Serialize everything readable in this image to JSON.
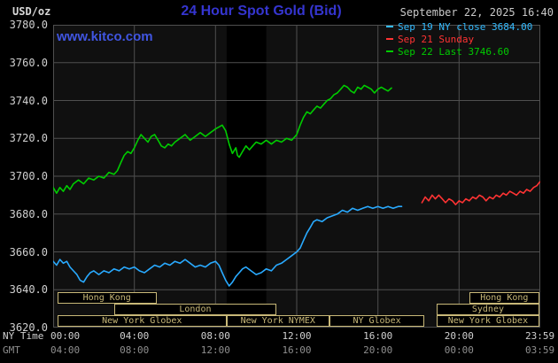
{
  "header": {
    "unit_label": "USD/oz",
    "title": "24 Hour Spot Gold (Bid)",
    "datetime": "September 22, 2025 16:40",
    "watermark": "www.kitco.com"
  },
  "legend": [
    {
      "label": "Sep 19 NY close 3684.00",
      "color": "#33bbff"
    },
    {
      "label": "Sep 21 Sunday",
      "color": "#ff3333"
    },
    {
      "label": "Sep 22 Last 3746.60",
      "color": "#00cc00"
    }
  ],
  "axes": {
    "ny_label": "NY Time",
    "gmt_label": "GMT"
  },
  "colors": {
    "background": "#000000",
    "plot_background": "#101010",
    "grid": "#4f4f4f",
    "title_blue": "#3535d0",
    "link_blue": "#4055e0",
    "axis_text": "#d0d0d0",
    "gmt_text": "#8f8f8f",
    "session": "#c8b878",
    "series_green": "#00cc00",
    "series_blue": "#29aaff",
    "series_red": "#ff3333"
  },
  "chart_data": {
    "type": "line",
    "title": "24 Hour Spot Gold (Bid)",
    "ylabel": "USD/oz",
    "xlabel": "NY Time (hours)",
    "xlim": [
      0,
      24
    ],
    "ylim": [
      3620,
      3780
    ],
    "grid": true,
    "y_ticks": [
      {
        "v": 3780,
        "label": "3780.0"
      },
      {
        "v": 3760,
        "label": "3760.0"
      },
      {
        "v": 3740,
        "label": "3740.0"
      },
      {
        "v": 3720,
        "label": "3720.0"
      },
      {
        "v": 3700,
        "label": "3700.0"
      },
      {
        "v": 3680,
        "label": "3680.0"
      },
      {
        "v": 3660,
        "label": "3660.0"
      },
      {
        "v": 3640,
        "label": "3640.0"
      },
      {
        "v": 3620,
        "label": "3620.0"
      }
    ],
    "x_ticks": [
      {
        "h": 0,
        "ny": "00:00",
        "gmt": "04:00",
        "align": "start"
      },
      {
        "h": 4,
        "ny": "04:00",
        "gmt": "08:00",
        "align": "center"
      },
      {
        "h": 8,
        "ny": "08:00",
        "gmt": "12:00",
        "align": "center"
      },
      {
        "h": 12,
        "ny": "12:00",
        "gmt": "16:00",
        "align": "center"
      },
      {
        "h": 16,
        "ny": "16:00",
        "gmt": "20:00",
        "align": "center"
      },
      {
        "h": 20,
        "ny": "20:00",
        "gmt": "00:00",
        "align": "center"
      },
      {
        "h": 23.98,
        "ny": "23:59",
        "gmt": "03:59",
        "align": "center"
      }
    ],
    "shaded_regions": [
      {
        "start": 8.55,
        "end": 10.5,
        "color": "#000000"
      }
    ],
    "sessions": [
      {
        "label": "Hong Kong",
        "row": 0,
        "start": 0.2,
        "end": 5.1
      },
      {
        "label": "Hong Kong",
        "row": 0,
        "start": 20.5,
        "end": 23.95
      },
      {
        "label": "London",
        "row": 1,
        "start": 3.0,
        "end": 11.0
      },
      {
        "label": "Sydney",
        "row": 1,
        "start": 18.9,
        "end": 23.95
      },
      {
        "label": "New York Globex",
        "row": 2,
        "start": 0.2,
        "end": 8.55
      },
      {
        "label": "New York NYMEX",
        "row": 2,
        "start": 8.55,
        "end": 13.6
      },
      {
        "label": "NY Globex",
        "row": 2,
        "start": 13.6,
        "end": 18.3
      },
      {
        "label": "New York Globex",
        "row": 2,
        "start": 18.9,
        "end": 23.95
      }
    ],
    "series": [
      {
        "name": "Sep 19 NY close",
        "color": "#29aaff",
        "close": 3684.0,
        "points": [
          [
            0,
            3655
          ],
          [
            0.17,
            3653
          ],
          [
            0.33,
            3656
          ],
          [
            0.5,
            3654
          ],
          [
            0.67,
            3655
          ],
          [
            0.83,
            3652
          ],
          [
            1,
            3650
          ],
          [
            1.17,
            3648
          ],
          [
            1.33,
            3645
          ],
          [
            1.5,
            3644
          ],
          [
            1.67,
            3647
          ],
          [
            1.83,
            3649
          ],
          [
            2,
            3650
          ],
          [
            2.25,
            3648
          ],
          [
            2.5,
            3650
          ],
          [
            2.75,
            3649
          ],
          [
            3,
            3651
          ],
          [
            3.25,
            3650
          ],
          [
            3.5,
            3652
          ],
          [
            3.75,
            3651
          ],
          [
            4,
            3652
          ],
          [
            4.25,
            3650
          ],
          [
            4.5,
            3649
          ],
          [
            4.75,
            3651
          ],
          [
            5,
            3653
          ],
          [
            5.25,
            3652
          ],
          [
            5.5,
            3654
          ],
          [
            5.75,
            3653
          ],
          [
            6,
            3655
          ],
          [
            6.25,
            3654
          ],
          [
            6.5,
            3656
          ],
          [
            6.75,
            3654
          ],
          [
            7,
            3652
          ],
          [
            7.25,
            3653
          ],
          [
            7.5,
            3652
          ],
          [
            7.75,
            3654
          ],
          [
            8,
            3655
          ],
          [
            8.17,
            3653
          ],
          [
            8.33,
            3649
          ],
          [
            8.5,
            3645
          ],
          [
            8.67,
            3642
          ],
          [
            8.83,
            3644
          ],
          [
            9,
            3647
          ],
          [
            9.17,
            3649
          ],
          [
            9.33,
            3651
          ],
          [
            9.5,
            3652
          ],
          [
            9.75,
            3650
          ],
          [
            10,
            3648
          ],
          [
            10.25,
            3649
          ],
          [
            10.5,
            3651
          ],
          [
            10.75,
            3650
          ],
          [
            11,
            3653
          ],
          [
            11.25,
            3654
          ],
          [
            11.5,
            3656
          ],
          [
            11.75,
            3658
          ],
          [
            12,
            3660
          ],
          [
            12.17,
            3662
          ],
          [
            12.33,
            3666
          ],
          [
            12.5,
            3670
          ],
          [
            12.67,
            3673
          ],
          [
            12.83,
            3676
          ],
          [
            13,
            3677
          ],
          [
            13.25,
            3676
          ],
          [
            13.5,
            3678
          ],
          [
            13.75,
            3679
          ],
          [
            14,
            3680
          ],
          [
            14.25,
            3682
          ],
          [
            14.5,
            3681
          ],
          [
            14.75,
            3683
          ],
          [
            15,
            3682
          ],
          [
            15.25,
            3683
          ],
          [
            15.5,
            3684
          ],
          [
            15.75,
            3683
          ],
          [
            16,
            3684
          ],
          [
            16.25,
            3683
          ],
          [
            16.5,
            3684
          ],
          [
            16.75,
            3683
          ],
          [
            17,
            3684
          ],
          [
            17.17,
            3684
          ]
        ]
      },
      {
        "name": "Sep 21 Sunday",
        "color": "#ff3333",
        "points": [
          [
            18.17,
            3686
          ],
          [
            18.33,
            3689
          ],
          [
            18.5,
            3687
          ],
          [
            18.67,
            3690
          ],
          [
            18.83,
            3688
          ],
          [
            19,
            3690
          ],
          [
            19.17,
            3688
          ],
          [
            19.33,
            3686
          ],
          [
            19.5,
            3688
          ],
          [
            19.67,
            3687
          ],
          [
            19.83,
            3685
          ],
          [
            20,
            3687
          ],
          [
            20.17,
            3686
          ],
          [
            20.33,
            3688
          ],
          [
            20.5,
            3687
          ],
          [
            20.67,
            3689
          ],
          [
            20.83,
            3688
          ],
          [
            21,
            3690
          ],
          [
            21.17,
            3689
          ],
          [
            21.33,
            3687
          ],
          [
            21.5,
            3689
          ],
          [
            21.67,
            3688
          ],
          [
            21.83,
            3690
          ],
          [
            22,
            3689
          ],
          [
            22.17,
            3691
          ],
          [
            22.33,
            3690
          ],
          [
            22.5,
            3692
          ],
          [
            22.67,
            3691
          ],
          [
            22.83,
            3690
          ],
          [
            23,
            3692
          ],
          [
            23.17,
            3691
          ],
          [
            23.33,
            3693
          ],
          [
            23.5,
            3692
          ],
          [
            23.67,
            3694
          ],
          [
            23.83,
            3695
          ],
          [
            23.98,
            3697
          ]
        ]
      },
      {
        "name": "Sep 22",
        "color": "#00cc00",
        "last": 3746.6,
        "points": [
          [
            0,
            3694
          ],
          [
            0.17,
            3691
          ],
          [
            0.33,
            3694
          ],
          [
            0.5,
            3692
          ],
          [
            0.67,
            3695
          ],
          [
            0.83,
            3693
          ],
          [
            1,
            3696
          ],
          [
            1.25,
            3698
          ],
          [
            1.5,
            3696
          ],
          [
            1.75,
            3699
          ],
          [
            2,
            3698
          ],
          [
            2.25,
            3700
          ],
          [
            2.5,
            3699
          ],
          [
            2.75,
            3702
          ],
          [
            3,
            3701
          ],
          [
            3.17,
            3703
          ],
          [
            3.33,
            3707
          ],
          [
            3.5,
            3711
          ],
          [
            3.67,
            3713
          ],
          [
            3.83,
            3712
          ],
          [
            4,
            3715
          ],
          [
            4.17,
            3719
          ],
          [
            4.33,
            3722
          ],
          [
            4.5,
            3720
          ],
          [
            4.67,
            3718
          ],
          [
            4.83,
            3721
          ],
          [
            5,
            3722
          ],
          [
            5.17,
            3719
          ],
          [
            5.33,
            3716
          ],
          [
            5.5,
            3715
          ],
          [
            5.67,
            3717
          ],
          [
            5.83,
            3716
          ],
          [
            6,
            3718
          ],
          [
            6.25,
            3720
          ],
          [
            6.5,
            3722
          ],
          [
            6.75,
            3719
          ],
          [
            7,
            3721
          ],
          [
            7.25,
            3723
          ],
          [
            7.5,
            3721
          ],
          [
            7.75,
            3723
          ],
          [
            8,
            3725
          ],
          [
            8.17,
            3726
          ],
          [
            8.33,
            3727
          ],
          [
            8.5,
            3724
          ],
          [
            8.67,
            3717
          ],
          [
            8.83,
            3712
          ],
          [
            9,
            3715
          ],
          [
            9.08,
            3711
          ],
          [
            9.17,
            3710
          ],
          [
            9.33,
            3713
          ],
          [
            9.5,
            3716
          ],
          [
            9.67,
            3714
          ],
          [
            9.83,
            3716
          ],
          [
            10,
            3718
          ],
          [
            10.25,
            3717
          ],
          [
            10.5,
            3719
          ],
          [
            10.75,
            3717
          ],
          [
            11,
            3719
          ],
          [
            11.25,
            3718
          ],
          [
            11.5,
            3720
          ],
          [
            11.75,
            3719
          ],
          [
            12,
            3722
          ],
          [
            12.17,
            3727
          ],
          [
            12.33,
            3731
          ],
          [
            12.5,
            3734
          ],
          [
            12.67,
            3733
          ],
          [
            12.83,
            3735
          ],
          [
            13,
            3737
          ],
          [
            13.17,
            3736
          ],
          [
            13.33,
            3738
          ],
          [
            13.5,
            3740
          ],
          [
            13.67,
            3741
          ],
          [
            13.83,
            3743
          ],
          [
            14,
            3744
          ],
          [
            14.17,
            3746
          ],
          [
            14.33,
            3748
          ],
          [
            14.5,
            3747
          ],
          [
            14.67,
            3745
          ],
          [
            14.83,
            3744
          ],
          [
            15,
            3747
          ],
          [
            15.17,
            3746
          ],
          [
            15.33,
            3748
          ],
          [
            15.5,
            3747
          ],
          [
            15.67,
            3746
          ],
          [
            15.83,
            3744
          ],
          [
            16,
            3746
          ],
          [
            16.17,
            3747
          ],
          [
            16.33,
            3746
          ],
          [
            16.5,
            3745
          ],
          [
            16.67,
            3746.6
          ]
        ]
      }
    ]
  }
}
